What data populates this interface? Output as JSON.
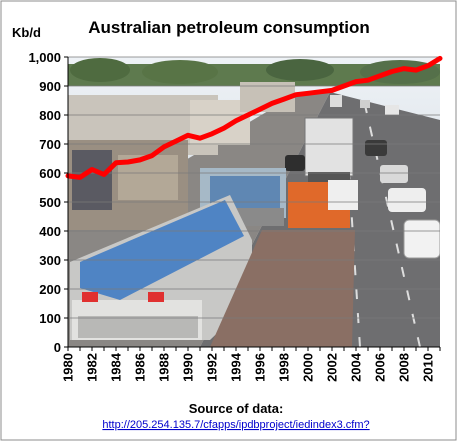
{
  "chart_data": {
    "type": "line",
    "title": "Australian petroleum consumption",
    "ylabel": "Kb/d",
    "xlabel": "Source  of data:",
    "source_link": "http://205.254.135.7/cfapps/ipdbproject/iedindex3.cfm?",
    "ylim": [
      0,
      1000
    ],
    "xlim": [
      1980,
      2011
    ],
    "y_ticks": [
      "0",
      "100",
      "200",
      "300",
      "400",
      "500",
      "600",
      "700",
      "800",
      "900",
      "1,000"
    ],
    "x_ticks": [
      "1980",
      "1982",
      "1984",
      "1986",
      "1988",
      "1990",
      "1992",
      "1994",
      "1996",
      "1998",
      "2000",
      "2002",
      "2004",
      "2006",
      "2008",
      "2010"
    ],
    "grid": true,
    "line_color": "#ff0000",
    "series": [
      {
        "x": [
          1980,
          1981,
          1982,
          1983,
          1984,
          1985,
          1986,
          1987,
          1988,
          1989,
          1990,
          1991,
          1992,
          1993,
          1994,
          1995,
          1996,
          1997,
          1998,
          1999,
          2000,
          2001,
          2002,
          2003,
          2004,
          2005,
          2006,
          2007,
          2008,
          2009,
          2010,
          2011
        ],
        "values": [
          590,
          585,
          612,
          595,
          635,
          638,
          645,
          660,
          690,
          710,
          730,
          720,
          735,
          755,
          780,
          800,
          820,
          840,
          855,
          870,
          875,
          880,
          885,
          900,
          915,
          920,
          935,
          950,
          960,
          955,
          970,
          995
        ]
      }
    ]
  }
}
